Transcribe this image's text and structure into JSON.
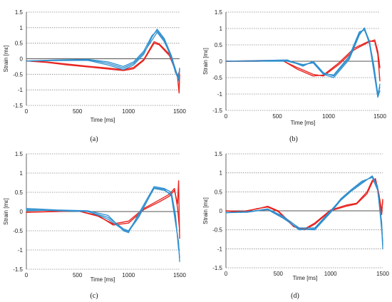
{
  "chart_data": [
    {
      "type": "line",
      "panel": "(a)",
      "xlabel": "Time [ms]",
      "ylabel": "Strain [mε]",
      "xlim": [
        0,
        1500
      ],
      "ylim": [
        -1.5,
        1.5
      ],
      "xticks": [
        0,
        500,
        1000,
        1500
      ],
      "yticks": [
        1.5,
        1,
        0.5,
        0,
        -0.5,
        -1,
        -1.5
      ],
      "grid": "horizontal dotted",
      "colors": {
        "red": "#e8241f",
        "blue": "#2f8fce"
      },
      "series": [
        {
          "color": "red",
          "x": [
            0,
            200,
            400,
            600,
            800,
            950,
            1050,
            1150,
            1250,
            1300,
            1400,
            1450,
            1480,
            1495,
            1500
          ],
          "values": [
            -0.07,
            -0.12,
            -0.2,
            -0.26,
            -0.33,
            -0.38,
            -0.32,
            -0.05,
            0.5,
            0.45,
            0.1,
            -0.3,
            -0.6,
            -1.1,
            -0.5
          ]
        },
        {
          "color": "red",
          "x": [
            0,
            200,
            400,
            600,
            800,
            950,
            1050,
            1150,
            1250,
            1300,
            1400,
            1450,
            1480,
            1500
          ],
          "values": [
            -0.07,
            -0.1,
            -0.17,
            -0.24,
            -0.3,
            -0.35,
            -0.28,
            -0.02,
            0.55,
            0.48,
            0.15,
            -0.25,
            -0.55,
            -0.4
          ]
        },
        {
          "color": "blue",
          "x": [
            0,
            300,
            600,
            800,
            950,
            1050,
            1150,
            1230,
            1280,
            1350,
            1420,
            1460,
            1490,
            1500
          ],
          "values": [
            -0.07,
            -0.06,
            -0.05,
            -0.2,
            -0.35,
            -0.2,
            0.15,
            0.7,
            0.95,
            0.65,
            0.1,
            -0.35,
            -0.7,
            -0.35
          ]
        },
        {
          "color": "blue",
          "x": [
            0,
            300,
            600,
            800,
            950,
            1050,
            1150,
            1230,
            1280,
            1350,
            1420,
            1460,
            1490,
            1500
          ],
          "values": [
            -0.07,
            -0.05,
            -0.03,
            -0.15,
            -0.3,
            -0.15,
            0.2,
            0.6,
            0.85,
            0.55,
            0.05,
            -0.4,
            -0.6,
            -0.3
          ]
        },
        {
          "color": "blue",
          "x": [
            0,
            300,
            600,
            800,
            950,
            1050,
            1150,
            1230,
            1280,
            1350,
            1420,
            1460,
            1490,
            1500
          ],
          "values": [
            -0.07,
            -0.04,
            -0.02,
            -0.1,
            -0.25,
            -0.1,
            0.25,
            0.75,
            0.9,
            0.6,
            0.0,
            -0.45,
            -0.65,
            -0.35
          ]
        }
      ]
    },
    {
      "type": "line",
      "panel": "(b)",
      "xlabel": "Time [ms]",
      "ylabel": "Strain [mε]",
      "xlim": [
        0,
        1500
      ],
      "ylim": [
        -1.5,
        1.5
      ],
      "xticks": [
        0,
        500,
        1000,
        1500
      ],
      "yticks": [
        1.5,
        1,
        0.5,
        0,
        -0.5,
        -1,
        -1.5
      ],
      "grid": "horizontal dotted",
      "colors": {
        "red": "#e8241f",
        "blue": "#2f8fce"
      },
      "series": [
        {
          "color": "red",
          "x": [
            0,
            300,
            550,
            700,
            850,
            950,
            1100,
            1250,
            1400,
            1450,
            1480,
            1500
          ],
          "values": [
            0.0,
            0.0,
            0.02,
            -0.2,
            -0.4,
            -0.45,
            -0.1,
            0.35,
            0.6,
            0.65,
            0.3,
            -0.2
          ]
        },
        {
          "color": "red",
          "x": [
            0,
            300,
            550,
            700,
            850,
            950,
            1100,
            1250,
            1400,
            1450,
            1480,
            1500
          ],
          "values": [
            0.0,
            0.02,
            0.03,
            -0.25,
            -0.45,
            -0.42,
            -0.05,
            0.4,
            0.62,
            0.6,
            0.2,
            -0.6
          ]
        },
        {
          "color": "blue",
          "x": [
            0,
            300,
            600,
            750,
            850,
            950,
            1050,
            1200,
            1300,
            1350,
            1400,
            1440,
            1480,
            1500
          ],
          "values": [
            0.0,
            0.02,
            0.04,
            -0.15,
            0.0,
            -0.35,
            -0.45,
            0.1,
            0.85,
            1.0,
            0.6,
            -0.2,
            -1.05,
            -0.7
          ]
        },
        {
          "color": "blue",
          "x": [
            0,
            300,
            600,
            750,
            850,
            950,
            1050,
            1200,
            1300,
            1350,
            1400,
            1440,
            1480,
            1500
          ],
          "values": [
            0.0,
            0.01,
            0.02,
            -0.1,
            -0.05,
            -0.4,
            -0.5,
            0.05,
            0.8,
            1.02,
            0.5,
            -0.3,
            -1.1,
            -0.9
          ]
        },
        {
          "color": "blue",
          "x": [
            0,
            300,
            600,
            750,
            850,
            950,
            1050,
            1200,
            1300,
            1350,
            1400,
            1440,
            1480,
            1500
          ],
          "values": [
            0.0,
            0.0,
            0.0,
            -0.12,
            -0.02,
            -0.38,
            -0.42,
            0.15,
            0.9,
            0.95,
            0.55,
            -0.1,
            -1.0,
            -0.8
          ]
        }
      ]
    },
    {
      "type": "line",
      "panel": "(c)",
      "xlabel": "Time [ms]",
      "ylabel": "Strain [mε]",
      "xlim": [
        0,
        1500
      ],
      "ylim": [
        -1.5,
        1.5
      ],
      "xticks": [
        0,
        500,
        1000,
        1500
      ],
      "yticks": [
        1.5,
        1,
        0.5,
        0,
        -0.5,
        -1,
        -1.5
      ],
      "grid": "horizontal dotted",
      "colors": {
        "red": "#e8241f",
        "blue": "#2f8fce"
      },
      "series": [
        {
          "color": "red",
          "x": [
            0,
            300,
            500,
            700,
            850,
            1000,
            1150,
            1300,
            1400,
            1450,
            1480,
            1490,
            1500
          ],
          "values": [
            -0.02,
            0.0,
            0.02,
            -0.1,
            -0.35,
            -0.3,
            0.05,
            0.25,
            0.4,
            0.55,
            0.2,
            0.8,
            -0.7
          ]
        },
        {
          "color": "red",
          "x": [
            0,
            300,
            500,
            700,
            850,
            1000,
            1150,
            1300,
            1400,
            1450,
            1480,
            1500
          ],
          "values": [
            -0.02,
            0.01,
            0.02,
            -0.12,
            -0.32,
            -0.25,
            0.08,
            0.3,
            0.45,
            0.6,
            0.1,
            -0.5
          ]
        },
        {
          "color": "blue",
          "x": [
            0,
            300,
            600,
            800,
            950,
            1000,
            1100,
            1250,
            1350,
            1420,
            1460,
            1490,
            1500
          ],
          "values": [
            0.05,
            0.02,
            0.0,
            -0.15,
            -0.45,
            -0.5,
            -0.1,
            0.6,
            0.55,
            0.45,
            -0.2,
            -0.9,
            -1.2
          ]
        },
        {
          "color": "blue",
          "x": [
            0,
            300,
            600,
            800,
            950,
            1000,
            1100,
            1250,
            1350,
            1420,
            1460,
            1490,
            1500
          ],
          "values": [
            0.08,
            0.04,
            0.02,
            -0.1,
            -0.5,
            -0.55,
            -0.05,
            0.65,
            0.6,
            0.5,
            -0.1,
            -1.0,
            -1.0
          ]
        },
        {
          "color": "blue",
          "x": [
            0,
            300,
            600,
            800,
            950,
            1000,
            1100,
            1250,
            1350,
            1420,
            1460,
            1490,
            1500
          ],
          "values": [
            0.03,
            0.03,
            0.01,
            -0.2,
            -0.48,
            -0.52,
            -0.15,
            0.62,
            0.58,
            0.4,
            -0.3,
            -0.8,
            -1.3
          ]
        }
      ]
    },
    {
      "type": "line",
      "panel": "(d)",
      "xlabel": "Time [ms]",
      "ylabel": "Strain [mε]",
      "xlim": [
        0,
        1500
      ],
      "ylim": [
        -1.5,
        1.5
      ],
      "xticks": [
        0,
        500,
        1000,
        1500
      ],
      "yticks": [
        1.5,
        1,
        0.5,
        0,
        -0.5,
        -1,
        -1.5
      ],
      "grid": "horizontal dotted",
      "colors": {
        "red": "#e8241f",
        "blue": "#2f8fce"
      },
      "series": [
        {
          "color": "red",
          "x": [
            0,
            150,
            300,
            400,
            500,
            650,
            750,
            850,
            1000,
            1150,
            1250,
            1350,
            1400,
            1430,
            1460,
            1490,
            1500
          ],
          "values": [
            0.0,
            -0.02,
            0.05,
            0.12,
            0.0,
            -0.4,
            -0.5,
            -0.35,
            0.0,
            0.12,
            0.18,
            0.45,
            0.75,
            0.85,
            0.5,
            0.0,
            0.25
          ]
        },
        {
          "color": "red",
          "x": [
            0,
            150,
            300,
            400,
            500,
            650,
            750,
            850,
            1000,
            1150,
            1250,
            1350,
            1400,
            1430,
            1460,
            1490,
            1500
          ],
          "values": [
            0.0,
            -0.04,
            0.06,
            0.1,
            -0.02,
            -0.42,
            -0.48,
            -0.32,
            0.02,
            0.15,
            0.2,
            0.5,
            0.8,
            0.82,
            0.45,
            -0.1,
            0.3
          ]
        },
        {
          "color": "blue",
          "x": [
            0,
            200,
            400,
            550,
            700,
            850,
            1000,
            1100,
            1200,
            1300,
            1400,
            1450,
            1490,
            1500
          ],
          "values": [
            -0.05,
            -0.03,
            0.05,
            -0.15,
            -0.45,
            -0.45,
            0.0,
            0.3,
            0.55,
            0.75,
            0.9,
            0.6,
            -0.4,
            -1.0
          ]
        },
        {
          "color": "blue",
          "x": [
            0,
            200,
            400,
            550,
            700,
            850,
            1000,
            1100,
            1200,
            1300,
            1400,
            1450,
            1490,
            1500
          ],
          "values": [
            -0.05,
            -0.02,
            0.03,
            -0.2,
            -0.48,
            -0.5,
            -0.05,
            0.28,
            0.52,
            0.72,
            0.92,
            0.65,
            -0.5,
            -0.8
          ]
        },
        {
          "color": "blue",
          "x": [
            0,
            200,
            400,
            550,
            700,
            850,
            1000,
            1100,
            1200,
            1300,
            1400,
            1450,
            1490,
            1500
          ],
          "values": [
            -0.04,
            -0.04,
            0.04,
            -0.18,
            -0.5,
            -0.47,
            -0.02,
            0.32,
            0.56,
            0.78,
            0.88,
            0.55,
            -0.3,
            -0.9
          ]
        }
      ]
    }
  ]
}
